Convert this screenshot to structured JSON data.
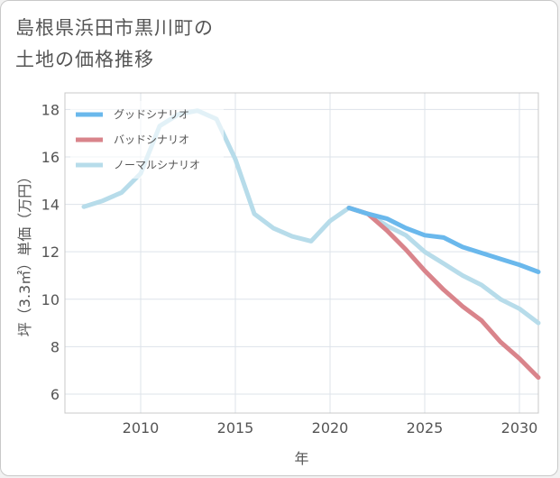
{
  "title_lines": [
    "島根県浜田市黒川町の",
    "土地の価格推移"
  ],
  "chart_data": {
    "type": "line",
    "xlabel": "年",
    "ylabel": "坪（3.3㎡）単価（万円）",
    "xlim": [
      2006,
      2031
    ],
    "ylim": [
      5.2,
      18.7
    ],
    "xticks": [
      2010,
      2015,
      2020,
      2025,
      2030
    ],
    "yticks": [
      6,
      8,
      10,
      12,
      14,
      16,
      18
    ],
    "grid": true,
    "legend_position": "top-left",
    "series": [
      {
        "name": "グッドシナリオ",
        "color": "#6ab8ec",
        "x": [
          2021,
          2022,
          2023,
          2024,
          2025,
          2026,
          2027,
          2028,
          2029,
          2030,
          2031
        ],
        "y": [
          13.85,
          13.6,
          13.4,
          13.0,
          12.7,
          12.6,
          12.2,
          11.95,
          11.7,
          11.45,
          11.15
        ]
      },
      {
        "name": "バッドシナリオ",
        "color": "#d9848b",
        "x": [
          2021,
          2022,
          2023,
          2024,
          2025,
          2026,
          2027,
          2028,
          2029,
          2030,
          2031
        ],
        "y": [
          13.85,
          13.6,
          12.9,
          12.1,
          11.2,
          10.4,
          9.7,
          9.1,
          8.2,
          7.5,
          6.7
        ]
      },
      {
        "name": "ノーマルシナリオ",
        "color": "#b7dcea",
        "x": [
          2007,
          2008,
          2009,
          2010,
          2011,
          2012,
          2013,
          2014,
          2015,
          2016,
          2017,
          2018,
          2019,
          2020,
          2021,
          2022,
          2023,
          2024,
          2025,
          2026,
          2027,
          2028,
          2029,
          2030,
          2031
        ],
        "y": [
          13.9,
          14.15,
          14.5,
          15.3,
          17.3,
          17.8,
          17.95,
          17.6,
          15.9,
          13.6,
          13.0,
          12.65,
          12.45,
          13.3,
          13.85,
          13.6,
          13.1,
          12.7,
          12.0,
          11.5,
          11.0,
          10.6,
          10.0,
          9.6,
          9.0
        ]
      }
    ]
  }
}
